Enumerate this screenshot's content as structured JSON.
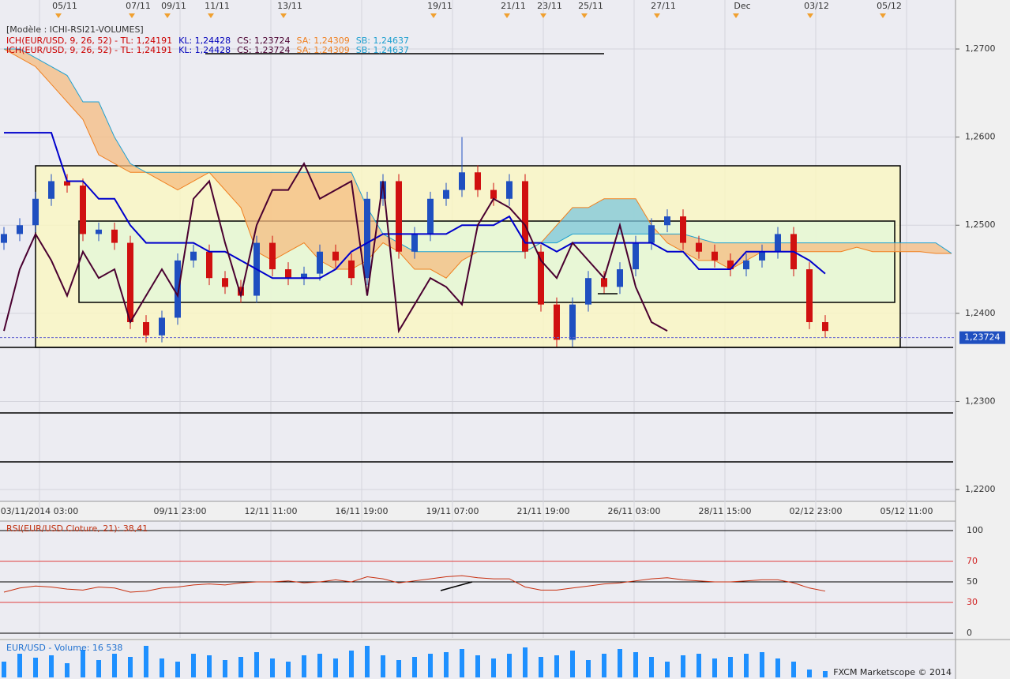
{
  "header": {
    "template": "[Modèle : ICHI-RSI21-VOLUMES]",
    "legend": [
      {
        "text": "ICH(EUR/USD, 9, 26, 52) -  TL: 1,24191",
        "color": "#cc0000"
      },
      {
        "text": "KL: 1,24428",
        "color": "#0000bb"
      },
      {
        "text": "CS: 1,23724",
        "color": "#4a0030"
      },
      {
        "text": "SA: 1,24309",
        "color": "#f08020"
      },
      {
        "text": "SB: 1,24637",
        "color": "#1ea0d0"
      }
    ]
  },
  "chart_data": [
    {
      "type": "candlestick",
      "top_labels": [
        "05/11",
        "07/11",
        "09/11",
        "11/11",
        "13/11",
        "19/11",
        "21/11",
        "23/11",
        "25/11",
        "27/11",
        "Dec",
        "03/12",
        "05/12"
      ],
      "x_labels": [
        "03/11/2014 03:00",
        "09/11 23:00",
        "12/11 11:00",
        "16/11 19:00",
        "19/11 07:00",
        "21/11 19:00",
        "26/11 03:00",
        "28/11 15:00",
        "02/12 23:00",
        "05/12 11:00"
      ],
      "open": [
        1.248,
        1.249,
        1.25,
        1.253,
        1.255,
        1.2545,
        1.249,
        1.2495,
        1.248,
        1.239,
        1.2375,
        1.2395,
        1.246,
        1.247,
        1.244,
        1.243,
        1.242,
        1.248,
        1.245,
        1.244,
        1.2445,
        1.247,
        1.246,
        1.244,
        1.253,
        1.255,
        1.247,
        1.249,
        1.253,
        1.254,
        1.256,
        1.254,
        1.253,
        1.255,
        1.247,
        1.241,
        1.237,
        1.241,
        1.244,
        1.243,
        1.245,
        1.248,
        1.25,
        1.251,
        1.248,
        1.247,
        1.246,
        1.245,
        1.246,
        1.247,
        1.249,
        1.245,
        1.239
      ],
      "high": [
        1.2498,
        1.2508,
        1.2538,
        1.2558,
        1.2558,
        1.2553,
        1.2503,
        1.2503,
        1.2488,
        1.2398,
        1.2403,
        1.2468,
        1.2478,
        1.2478,
        1.2448,
        1.2438,
        1.2488,
        1.2488,
        1.2458,
        1.2453,
        1.2478,
        1.2478,
        1.2468,
        1.2538,
        1.2558,
        1.2558,
        1.2498,
        1.2538,
        1.2548,
        1.26,
        1.2568,
        1.2548,
        1.2558,
        1.2558,
        1.2478,
        1.2418,
        1.2418,
        1.2448,
        1.2448,
        1.2458,
        1.2488,
        1.2508,
        1.2518,
        1.2518,
        1.2488,
        1.2478,
        1.2468,
        1.2468,
        1.2478,
        1.2498,
        1.2498,
        1.2458,
        1.2398
      ],
      "low": [
        1.2472,
        1.2482,
        1.2492,
        1.2522,
        1.2537,
        1.2482,
        1.2482,
        1.2472,
        1.2382,
        1.2367,
        1.2367,
        1.2387,
        1.2452,
        1.2432,
        1.2422,
        1.2412,
        1.2412,
        1.2442,
        1.2432,
        1.2432,
        1.2437,
        1.2452,
        1.2432,
        1.2432,
        1.2522,
        1.2462,
        1.2462,
        1.2482,
        1.2522,
        1.2532,
        1.2532,
        1.2522,
        1.2522,
        1.2462,
        1.2402,
        1.2362,
        1.2362,
        1.2402,
        1.2422,
        1.2422,
        1.2442,
        1.2472,
        1.2492,
        1.2472,
        1.2462,
        1.2452,
        1.2442,
        1.2442,
        1.2452,
        1.2462,
        1.2442,
        1.2382,
        1.2372
      ],
      "close": [
        1.249,
        1.25,
        1.253,
        1.255,
        1.2545,
        1.249,
        1.2495,
        1.248,
        1.239,
        1.2375,
        1.2395,
        1.246,
        1.247,
        1.244,
        1.243,
        1.242,
        1.248,
        1.245,
        1.244,
        1.2445,
        1.247,
        1.246,
        1.244,
        1.253,
        1.255,
        1.247,
        1.249,
        1.253,
        1.254,
        1.256,
        1.254,
        1.253,
        1.255,
        1.247,
        1.241,
        1.237,
        1.241,
        1.244,
        1.243,
        1.245,
        1.248,
        1.25,
        1.251,
        1.248,
        1.247,
        1.246,
        1.245,
        1.246,
        1.247,
        1.249,
        1.245,
        1.239,
        1.238
      ],
      "up_color": "#1f4fc0",
      "down_color": "#d01010",
      "kijun": {
        "color": "#0000cc",
        "values": [
          1.2605,
          1.2605,
          1.2605,
          1.2605,
          1.255,
          1.255,
          1.253,
          1.253,
          1.25,
          1.248,
          1.248,
          1.248,
          1.248,
          1.247,
          1.247,
          1.246,
          1.245,
          1.244,
          1.244,
          1.244,
          1.244,
          1.245,
          1.247,
          1.248,
          1.249,
          1.249,
          1.249,
          1.249,
          1.249,
          1.25,
          1.25,
          1.25,
          1.251,
          1.248,
          1.248,
          1.247,
          1.248,
          1.248,
          1.248,
          1.248,
          1.248,
          1.248,
          1.247,
          1.247,
          1.245,
          1.245,
          1.245,
          1.247,
          1.247,
          1.247,
          1.247,
          1.246,
          1.2445
        ]
      },
      "chikou": {
        "color": "#4a0030",
        "values": [
          1.238,
          1.245,
          1.249,
          1.246,
          1.242,
          1.247,
          1.244,
          1.245,
          1.239,
          1.242,
          1.245,
          1.242,
          1.253,
          1.255,
          1.248,
          1.242,
          1.25,
          1.254,
          1.254,
          1.257,
          1.253,
          1.254,
          1.255,
          1.242,
          1.255,
          1.238,
          1.241,
          1.244,
          1.243,
          1.241,
          1.25,
          1.253,
          1.252,
          1.25,
          1.246,
          1.244,
          1.248,
          1.246,
          1.244,
          1.25,
          1.243,
          1.239,
          1.238
        ]
      },
      "senkou_a": {
        "color": "#f08020",
        "values": [
          1.27,
          1.269,
          1.268,
          1.266,
          1.264,
          1.262,
          1.258,
          1.257,
          1.256,
          1.256,
          1.255,
          1.254,
          1.255,
          1.256,
          1.254,
          1.252,
          1.247,
          1.246,
          1.247,
          1.248,
          1.246,
          1.245,
          1.245,
          1.246,
          1.248,
          1.247,
          1.245,
          1.245,
          1.244,
          1.246,
          1.247,
          1.247,
          1.247,
          1.247,
          1.248,
          1.25,
          1.252,
          1.252,
          1.253,
          1.253,
          1.253,
          1.25,
          1.248,
          1.247,
          1.246,
          1.246,
          1.245,
          1.246,
          1.247,
          1.247,
          1.247,
          1.247,
          1.247,
          1.247,
          1.2475,
          1.247,
          1.247,
          1.247,
          1.247,
          1.2468,
          1.2468
        ]
      },
      "senkou_b": {
        "color": "#1ea0d0",
        "values": [
          1.27,
          1.27,
          1.269,
          1.268,
          1.267,
          1.264,
          1.264,
          1.26,
          1.257,
          1.256,
          1.256,
          1.256,
          1.256,
          1.256,
          1.256,
          1.256,
          1.256,
          1.256,
          1.256,
          1.256,
          1.256,
          1.256,
          1.256,
          1.252,
          1.249,
          1.248,
          1.247,
          1.247,
          1.247,
          1.247,
          1.247,
          1.247,
          1.247,
          1.247,
          1.248,
          1.248,
          1.249,
          1.249,
          1.249,
          1.249,
          1.249,
          1.249,
          1.249,
          1.249,
          1.2485,
          1.248,
          1.248,
          1.248,
          1.248,
          1.248,
          1.248,
          1.248,
          1.248,
          1.248,
          1.248,
          1.248,
          1.248,
          1.248,
          1.248,
          1.248,
          1.2468
        ]
      },
      "last": {
        "value": 1.23724,
        "label": "1,23724"
      },
      "ylim": [
        1.21866,
        1.27556
      ],
      "yticks": [
        {
          "value": 1.27,
          "label": "1,2700"
        },
        {
          "value": 1.26,
          "label": "1,2600"
        },
        {
          "value": 1.25,
          "label": "1,2500"
        },
        {
          "value": 1.24,
          "label": "1,2400"
        },
        {
          "value": 1.23,
          "label": "1,2300"
        },
        {
          "value": 1.22,
          "label": "1,2200"
        }
      ],
      "grid": true
    },
    {
      "type": "line",
      "title": "RSI(EUR/USD.Cloture, 21): 38,41",
      "color": "#c83010",
      "values": [
        40,
        44,
        46,
        45,
        43,
        42,
        45,
        44,
        40,
        41,
        44,
        45,
        47,
        48,
        47,
        49,
        50,
        50,
        51,
        49,
        50,
        52,
        50,
        55,
        53,
        49,
        51,
        53,
        55,
        56,
        54,
        53,
        53,
        45,
        42,
        42,
        44,
        46,
        48,
        49,
        51,
        53,
        54,
        52,
        51,
        50,
        50,
        51,
        52,
        52,
        49,
        44,
        41
      ],
      "ylim": [
        -4.6,
        109.2
      ],
      "yticks": [
        0,
        30,
        50,
        70,
        100
      ],
      "grid": true
    },
    {
      "type": "bar",
      "title": "EUR/USD - Volume: 16 538",
      "color": "#1e90ff",
      "values": [
        20,
        30,
        25,
        28,
        18,
        35,
        22,
        30,
        26,
        40,
        24,
        20,
        30,
        28,
        22,
        26,
        32,
        24,
        20,
        28,
        30,
        24,
        34,
        40,
        28,
        22,
        26,
        30,
        32,
        36,
        28,
        24,
        30,
        38,
        26,
        28,
        34,
        22,
        30,
        36,
        32,
        26,
        20,
        28,
        30,
        24,
        26,
        30,
        32,
        24,
        20,
        10,
        8
      ],
      "ylim": [
        0,
        46
      ]
    }
  ],
  "footer": "FXCM Marketscope © 2014"
}
